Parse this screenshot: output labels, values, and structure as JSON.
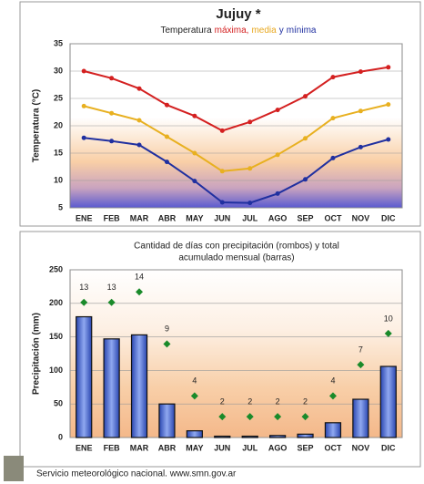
{
  "chart_data": [
    {
      "type": "line",
      "title": "Jujuy *",
      "subtitle": [
        {
          "text": "Temperatura",
          "color": "#222222"
        },
        {
          "text": "máxima,",
          "color": "#d42020"
        },
        {
          "text": "media",
          "color": "#e8a820"
        },
        {
          "text": "y",
          "color": "#2030a0"
        },
        {
          "text": "mínima",
          "color": "#2030a0"
        }
      ],
      "ylabel": "Temperatura (°C)",
      "categories": [
        "ENE",
        "FEB",
        "MAR",
        "ABR",
        "MAY",
        "JUN",
        "JUL",
        "AGO",
        "SEP",
        "OCT",
        "NOV",
        "DIC"
      ],
      "series": [
        {
          "color": "#d42020",
          "values": [
            30,
            28.7,
            26.8,
            23.8,
            21.8,
            19.1,
            20.7,
            22.9,
            25.4,
            28.9,
            29.9,
            30.7
          ]
        },
        {
          "color": "#e8b020",
          "values": [
            23.6,
            22.3,
            21,
            18,
            15,
            11.7,
            12.2,
            14.7,
            17.7,
            21.4,
            22.7,
            23.9
          ]
        },
        {
          "color": "#2030a0",
          "values": [
            17.8,
            17.2,
            16.5,
            13.4,
            9.9,
            6,
            5.9,
            7.6,
            10.2,
            14.1,
            16.1,
            17.5
          ]
        }
      ],
      "ylim": [
        5,
        35
      ],
      "yticks": [
        5,
        10,
        15,
        20,
        25,
        30,
        35
      ],
      "grid": true
    },
    {
      "type": "bar",
      "title": [
        "Cantidad de días con precipitación (rombos) y total",
        "acumulado mensual (barras)"
      ],
      "ylabel": "Precipitación (mm)",
      "categories": [
        "ENE",
        "FEB",
        "MAR",
        "ABR",
        "MAY",
        "JUN",
        "JUL",
        "AGO",
        "SEP",
        "OCT",
        "NOV",
        "DIC"
      ],
      "series": [
        {
          "color": "#3a5ccc",
          "values": [
            180,
            147,
            153,
            50,
            10,
            2,
            2,
            3,
            5,
            22,
            57,
            106
          ]
        },
        {
          "color": "#1a8a2a",
          "marker": "diamond",
          "axis": "y2",
          "values": [
            13,
            13,
            14,
            9,
            4,
            2,
            2,
            2,
            2,
            4,
            7,
            10
          ]
        }
      ],
      "ylim": [
        0,
        250
      ],
      "yticks": [
        0,
        50,
        100,
        150,
        200,
        250
      ],
      "y2lim": [
        0,
        16.13
      ],
      "grid": true
    }
  ],
  "footer": "Servicio meteorológico nacional. www.smn.gov.ar"
}
